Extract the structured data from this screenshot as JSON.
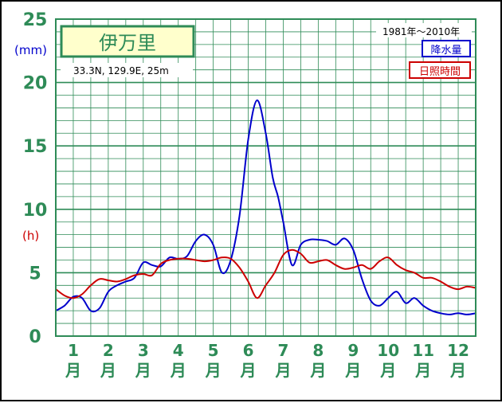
{
  "chart_data": {
    "type": "line",
    "station": {
      "name": "伊万里",
      "location": "33.3N,  129.9E,  25m"
    },
    "period": "1981年〜2010年",
    "y_axis": {
      "ticks": [
        "0",
        "5",
        "10",
        "15",
        "20",
        "25"
      ],
      "range": [
        0,
        25
      ],
      "unit_primary": "(mm)",
      "unit_secondary": "(h)"
    },
    "x_axis": {
      "range": [
        0,
        12
      ],
      "months": [
        "1",
        "2",
        "3",
        "4",
        "5",
        "6",
        "7",
        "8",
        "9",
        "10",
        "11",
        "12"
      ],
      "month_suffix": "月"
    },
    "grid": true,
    "legend_position": "top-right",
    "series": [
      {
        "name": "降水量",
        "color": "#0000cc",
        "x": [
          0.0,
          0.25,
          0.5,
          0.75,
          1.0,
          1.25,
          1.5,
          1.75,
          2.0,
          2.25,
          2.5,
          2.75,
          3.0,
          3.25,
          3.5,
          3.75,
          4.0,
          4.25,
          4.5,
          4.75,
          5.0,
          5.25,
          5.5,
          5.75,
          6.0,
          6.2,
          6.35,
          6.5,
          6.75,
          7.0,
          7.25,
          7.5,
          7.75,
          8.0,
          8.25,
          8.5,
          8.75,
          9.0,
          9.25,
          9.5,
          9.75,
          10.0,
          10.25,
          10.5,
          10.75,
          11.0,
          11.25,
          11.5,
          11.75,
          12.0
        ],
        "values": [
          2.0,
          2.4,
          3.1,
          3.0,
          2.0,
          2.2,
          3.5,
          4.0,
          4.3,
          4.6,
          5.8,
          5.6,
          5.5,
          6.2,
          6.1,
          6.3,
          7.5,
          8.0,
          7.2,
          5.0,
          6.0,
          9.5,
          15.5,
          18.6,
          16.0,
          12.5,
          11.0,
          9.0,
          5.6,
          7.2,
          7.6,
          7.6,
          7.5,
          7.2,
          7.7,
          6.8,
          4.5,
          2.8,
          2.4,
          3.0,
          3.5,
          2.6,
          3.0,
          2.4,
          2.0,
          1.8,
          1.7,
          1.8,
          1.7,
          1.8
        ]
      },
      {
        "name": "日照時間",
        "color": "#cc0000",
        "x": [
          0.0,
          0.25,
          0.5,
          0.75,
          1.0,
          1.25,
          1.5,
          1.75,
          2.0,
          2.25,
          2.5,
          2.75,
          3.0,
          3.25,
          3.5,
          3.75,
          4.0,
          4.25,
          4.5,
          4.75,
          5.0,
          5.25,
          5.5,
          5.75,
          6.0,
          6.25,
          6.5,
          6.75,
          7.0,
          7.25,
          7.5,
          7.75,
          8.0,
          8.25,
          8.5,
          8.75,
          9.0,
          9.25,
          9.5,
          9.75,
          10.0,
          10.25,
          10.5,
          10.75,
          11.0,
          11.25,
          11.5,
          11.75,
          12.0
        ],
        "values": [
          3.7,
          3.2,
          3.0,
          3.3,
          4.0,
          4.5,
          4.4,
          4.3,
          4.5,
          4.8,
          4.9,
          4.8,
          5.7,
          6.0,
          6.1,
          6.1,
          6.0,
          5.9,
          6.0,
          6.2,
          6.1,
          5.4,
          4.3,
          3.0,
          4.0,
          5.0,
          6.4,
          6.8,
          6.5,
          5.8,
          5.9,
          6.0,
          5.6,
          5.3,
          5.4,
          5.6,
          5.3,
          5.9,
          6.2,
          5.6,
          5.2,
          5.0,
          4.6,
          4.6,
          4.3,
          3.9,
          3.7,
          3.9,
          3.8
        ]
      }
    ]
  }
}
